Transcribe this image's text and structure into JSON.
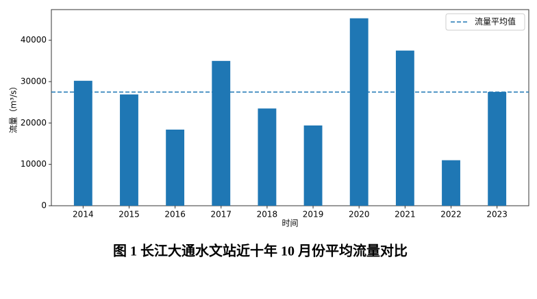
{
  "chart_data": {
    "type": "bar",
    "caption": "图 1  长江大通水文站近十年 10 月份平均流量对比",
    "x_label": "时间",
    "y_label": "流量（m³/s）",
    "categories": [
      "2014",
      "2015",
      "2016",
      "2017",
      "2018",
      "2019",
      "2020",
      "2021",
      "2022",
      "2023"
    ],
    "values": [
      30200,
      26900,
      18400,
      35000,
      23500,
      19400,
      45300,
      37500,
      11000,
      27500
    ],
    "color": "#1f77b4",
    "reference_line": {
      "name": "流量平均值",
      "value": 27470,
      "color": "#1f77b4"
    },
    "ylim": [
      0,
      47400
    ],
    "yticks": [
      0,
      10000,
      20000,
      30000,
      40000
    ],
    "legend": "upper right",
    "grid": false
  }
}
